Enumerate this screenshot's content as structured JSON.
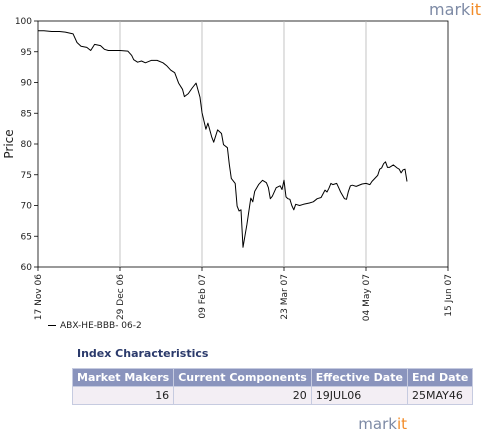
{
  "brand": {
    "logo_main": "mark",
    "logo_accent": "it"
  },
  "chart_data": {
    "type": "line",
    "title": "",
    "xlabel": "",
    "ylabel": "Price",
    "ylim": [
      60,
      100
    ],
    "yticks": [
      60,
      65,
      70,
      75,
      80,
      85,
      90,
      95,
      100
    ],
    "xticks": [
      "17 Nov 06",
      "29 Dec 06",
      "09 Feb 07",
      "23 Mar 07",
      "04 May 07",
      "15 Jun 07"
    ],
    "xrange": [
      "17 Nov 06",
      "15 Jun 07"
    ],
    "grid": {
      "vertical": true,
      "horizontal": false
    },
    "series": [
      {
        "name": "ABX-HE-BBB- 06-2",
        "color": "#000000",
        "points": [
          [
            "17 Nov 06",
            98.4
          ],
          [
            "20 Nov 06",
            98.4
          ],
          [
            "24 Nov 06",
            98.3
          ],
          [
            "28 Nov 06",
            98.3
          ],
          [
            "01 Dec 06",
            98.2
          ],
          [
            "05 Dec 06",
            97.9
          ],
          [
            "07 Dec 06",
            96.5
          ],
          [
            "09 Dec 06",
            95.9
          ],
          [
            "12 Dec 06",
            95.7
          ],
          [
            "14 Dec 06",
            95.2
          ],
          [
            "16 Dec 06",
            96.2
          ],
          [
            "19 Dec 06",
            96.0
          ],
          [
            "21 Dec 06",
            95.4
          ],
          [
            "23 Dec 06",
            95.2
          ],
          [
            "29 Dec 06",
            95.2
          ],
          [
            "02 Jan 07",
            95.1
          ],
          [
            "04 Jan 07",
            94.4
          ],
          [
            "05 Jan 07",
            93.7
          ],
          [
            "07 Jan 07",
            93.3
          ],
          [
            "09 Jan 07",
            93.5
          ],
          [
            "11 Jan 07",
            93.2
          ],
          [
            "14 Jan 07",
            93.6
          ],
          [
            "17 Jan 07",
            93.6
          ],
          [
            "20 Jan 07",
            93.2
          ],
          [
            "22 Jan 07",
            92.7
          ],
          [
            "24 Jan 07",
            92.0
          ],
          [
            "26 Jan 07",
            91.6
          ],
          [
            "28 Jan 07",
            89.9
          ],
          [
            "30 Jan 07",
            88.9
          ],
          [
            "31 Jan 07",
            87.7
          ],
          [
            "02 Feb 07",
            88.2
          ],
          [
            "04 Feb 07",
            89.1
          ],
          [
            "06 Feb 07",
            89.9
          ],
          [
            "08 Feb 07",
            87.6
          ],
          [
            "09 Feb 07",
            85.1
          ],
          [
            "11 Feb 07",
            82.4
          ],
          [
            "12 Feb 07",
            83.4
          ],
          [
            "14 Feb 07",
            81.1
          ],
          [
            "15 Feb 07",
            80.3
          ],
          [
            "17 Feb 07",
            82.3
          ],
          [
            "19 Feb 07",
            81.7
          ],
          [
            "20 Feb 07",
            79.9
          ],
          [
            "22 Feb 07",
            79.4
          ],
          [
            "23 Feb 07",
            76.7
          ],
          [
            "24 Feb 07",
            74.4
          ],
          [
            "26 Feb 07",
            73.6
          ],
          [
            "27 Feb 07",
            69.9
          ],
          [
            "28 Feb 07",
            69.1
          ],
          [
            "01 Mar 07",
            69.3
          ],
          [
            "02 Mar 07",
            63.2
          ],
          [
            "03 Mar 07",
            65.1
          ],
          [
            "04 Mar 07",
            66.9
          ],
          [
            "06 Mar 07",
            71.2
          ],
          [
            "07 Mar 07",
            70.6
          ],
          [
            "08 Mar 07",
            72.3
          ],
          [
            "10 Mar 07",
            73.4
          ],
          [
            "12 Mar 07",
            74.1
          ],
          [
            "14 Mar 07",
            73.7
          ],
          [
            "15 Mar 07",
            72.9
          ],
          [
            "16 Mar 07",
            71.1
          ],
          [
            "17 Mar 07",
            71.5
          ],
          [
            "19 Mar 07",
            72.9
          ],
          [
            "21 Mar 07",
            73.2
          ],
          [
            "22 Mar 07",
            72.6
          ],
          [
            "23 Mar 07",
            74.1
          ],
          [
            "24 Mar 07",
            71.4
          ],
          [
            "25 Mar 07",
            71.1
          ],
          [
            "26 Mar 07",
            71.0
          ],
          [
            "27 Mar 07",
            70.0
          ],
          [
            "28 Mar 07",
            69.3
          ],
          [
            "29 Mar 07",
            70.2
          ],
          [
            "31 Mar 07",
            70.0
          ],
          [
            "02 Apr 07",
            70.2
          ],
          [
            "05 Apr 07",
            70.4
          ],
          [
            "07 Apr 07",
            70.6
          ],
          [
            "09 Apr 07",
            71.1
          ],
          [
            "11 Apr 07",
            71.3
          ],
          [
            "13 Apr 07",
            72.5
          ],
          [
            "14 Apr 07",
            72.2
          ],
          [
            "15 Apr 07",
            72.8
          ],
          [
            "16 Apr 07",
            73.6
          ],
          [
            "17 Apr 07",
            73.4
          ],
          [
            "19 Apr 07",
            73.6
          ],
          [
            "20 Apr 07",
            72.9
          ],
          [
            "21 Apr 07",
            72.2
          ],
          [
            "23 Apr 07",
            71.1
          ],
          [
            "24 Apr 07",
            71.0
          ],
          [
            "25 Apr 07",
            72.3
          ],
          [
            "26 Apr 07",
            73.2
          ],
          [
            "27 Apr 07",
            73.3
          ],
          [
            "29 Apr 07",
            73.1
          ],
          [
            "02 May 07",
            73.5
          ],
          [
            "04 May 07",
            73.6
          ],
          [
            "06 May 07",
            73.4
          ],
          [
            "07 May 07",
            73.9
          ],
          [
            "10 May 07",
            74.9
          ],
          [
            "11 May 07",
            75.9
          ],
          [
            "12 May 07",
            76.1
          ],
          [
            "13 May 07",
            76.8
          ],
          [
            "14 May 07",
            77.1
          ],
          [
            "15 May 07",
            76.2
          ],
          [
            "16 May 07",
            76.2
          ],
          [
            "18 May 07",
            76.6
          ],
          [
            "20 May 07",
            76.1
          ],
          [
            "21 May 07",
            75.9
          ],
          [
            "22 May 07",
            75.3
          ],
          [
            "23 May 07",
            75.8
          ],
          [
            "24 May 07",
            75.9
          ],
          [
            "25 May 07",
            73.9
          ]
        ]
      }
    ]
  },
  "index_characteristics": {
    "title": "Index Characteristics",
    "headers": [
      "Market Makers",
      "Current Components",
      "Effective Date",
      "End Date"
    ],
    "rows": [
      [
        "16",
        "20",
        "19JUL06",
        "25MAY46"
      ]
    ]
  }
}
